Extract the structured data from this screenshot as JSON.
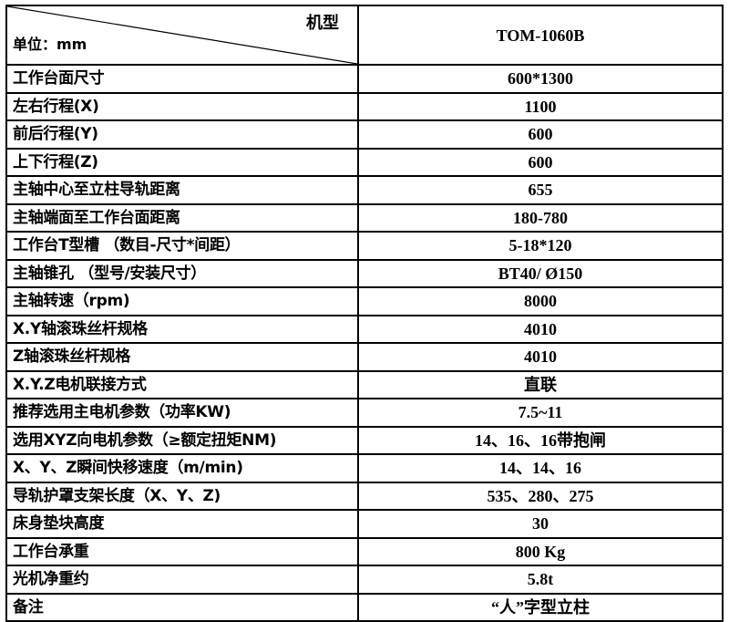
{
  "header": {
    "model_label": "机型",
    "unit_label": "单位：mm",
    "model": "TOM-1060B"
  },
  "rows": [
    {
      "label": "工作台面尺寸",
      "value": "600*1300"
    },
    {
      "label": "左右行程(X)",
      "value": "1100"
    },
    {
      "label": "前后行程(Y)",
      "value": "600"
    },
    {
      "label": "上下行程(Z)",
      "value": "600"
    },
    {
      "label": "主轴中心至立柱导轨距离",
      "value": "655"
    },
    {
      "label": "主轴端面至工作台面距离",
      "value": "180-780"
    },
    {
      "label": "工作台T型槽 （数目-尺寸*间距）",
      "value": "5-18*120"
    },
    {
      "label": "主轴锥孔 （型号/安装尺寸）",
      "value": "BT40/ Ø150"
    },
    {
      "label": "主轴转速（rpm)",
      "value": "8000"
    },
    {
      "label": "X.Y轴滚珠丝杆规格",
      "value": "4010"
    },
    {
      "label": "Z轴滚珠丝杆规格",
      "value": "4010"
    },
    {
      "label": "X.Y.Z电机联接方式",
      "value": "直联"
    },
    {
      "label": "推荐选用主电机参数（功率KW)",
      "value": "7.5~11"
    },
    {
      "label": "选用XYZ向电机参数（≥额定扭矩NM)",
      "value": "14、16、16带抱闸"
    },
    {
      "label": "X、Y、Z瞬间快移速度（m/min)",
      "value": "14、14、16"
    },
    {
      "label": "导轨护罩支架长度（X、Y、Z)",
      "value": "535、280、275"
    },
    {
      "label": "床身垫块高度",
      "value": "30"
    },
    {
      "label": "工作台承重",
      "value": "800 Kg"
    },
    {
      "label": "光机净重约",
      "value": "5.8t"
    },
    {
      "label": "备注",
      "value": "“人”字型立柱"
    }
  ]
}
